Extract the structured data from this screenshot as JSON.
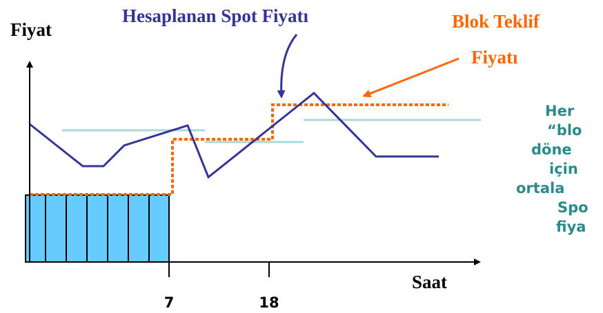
{
  "axes": {
    "y_label": "Fiyat",
    "x_label": "Saat",
    "x_ticks": [
      "7",
      "18"
    ]
  },
  "annotations": {
    "spot": "Hesaplanan Spot Fiyatı",
    "block": [
      "Blok Teklif",
      "Fiyatı"
    ]
  },
  "side_text": [
    "Her",
    "“blo",
    "döne",
    "için",
    "ortala",
    "Spo",
    "fiya"
  ]
}
